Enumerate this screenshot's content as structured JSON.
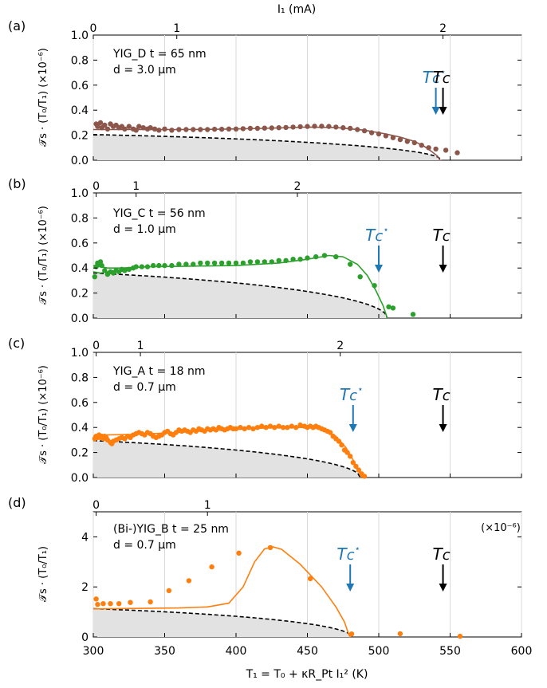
{
  "figure": {
    "shared_xlabel": "T₁ = T₀ + κR_Pt I₁² (K)",
    "shared_xticks": [
      300,
      350,
      400,
      450,
      500,
      550,
      600
    ]
  },
  "chart_data": [
    {
      "type": "scatter",
      "panel_label": "(a)",
      "sample_line1": "YIG_D t = 65 nm",
      "sample_line2": "d = 3.0 µm",
      "ylabel": "𝒯s · (T₀/T₁) (×10⁻⁶)",
      "top_axis_label": "I₁ (mA)",
      "xlim": [
        300,
        600
      ],
      "ylim": [
        0,
        1.0
      ],
      "yticks": [
        0.0,
        0.2,
        0.4,
        0.6,
        0.8,
        1.0
      ],
      "top_ticks": [
        {
          "label": "0",
          "x": 300
        },
        {
          "label": "1",
          "x": 358.5
        },
        {
          "label": "2",
          "x": 545
        }
      ],
      "grid": true,
      "color": "#8c564b",
      "tc_star": {
        "label": "Tc*",
        "x": 540
      },
      "tc": {
        "label": "Tc",
        "x": 545
      },
      "points": [
        [
          302,
          0.29
        ],
        [
          303,
          0.27
        ],
        [
          305,
          0.3
        ],
        [
          306,
          0.26
        ],
        [
          308,
          0.28
        ],
        [
          310,
          0.25
        ],
        [
          312,
          0.29
        ],
        [
          314,
          0.27
        ],
        [
          316,
          0.28
        ],
        [
          318,
          0.26
        ],
        [
          320,
          0.27
        ],
        [
          322,
          0.25
        ],
        [
          325,
          0.27
        ],
        [
          328,
          0.25
        ],
        [
          330,
          0.24
        ],
        [
          332,
          0.27
        ],
        [
          335,
          0.26
        ],
        [
          338,
          0.25
        ],
        [
          340,
          0.26
        ],
        [
          343,
          0.25
        ],
        [
          346,
          0.24
        ],
        [
          350,
          0.25
        ],
        [
          355,
          0.24
        ],
        [
          360,
          0.245
        ],
        [
          365,
          0.245
        ],
        [
          370,
          0.245
        ],
        [
          375,
          0.245
        ],
        [
          380,
          0.245
        ],
        [
          385,
          0.248
        ],
        [
          390,
          0.248
        ],
        [
          395,
          0.25
        ],
        [
          400,
          0.25
        ],
        [
          405,
          0.252
        ],
        [
          410,
          0.255
        ],
        [
          415,
          0.255
        ],
        [
          420,
          0.257
        ],
        [
          425,
          0.258
        ],
        [
          430,
          0.26
        ],
        [
          435,
          0.262
        ],
        [
          440,
          0.265
        ],
        [
          445,
          0.268
        ],
        [
          450,
          0.27
        ],
        [
          455,
          0.272
        ],
        [
          460,
          0.272
        ],
        [
          465,
          0.27
        ],
        [
          470,
          0.265
        ],
        [
          475,
          0.26
        ],
        [
          480,
          0.255
        ],
        [
          485,
          0.245
        ],
        [
          490,
          0.235
        ],
        [
          495,
          0.22
        ],
        [
          500,
          0.21
        ],
        [
          505,
          0.195
        ],
        [
          510,
          0.18
        ],
        [
          515,
          0.165
        ],
        [
          520,
          0.15
        ],
        [
          525,
          0.14
        ],
        [
          530,
          0.12
        ],
        [
          535,
          0.1
        ],
        [
          540,
          0.09
        ],
        [
          547,
          0.08
        ],
        [
          555,
          0.06
        ]
      ],
      "fit": [
        [
          300,
          0.245
        ],
        [
          330,
          0.245
        ],
        [
          360,
          0.245
        ],
        [
          390,
          0.248
        ],
        [
          420,
          0.255
        ],
        [
          450,
          0.265
        ],
        [
          470,
          0.262
        ],
        [
          490,
          0.24
        ],
        [
          505,
          0.21
        ],
        [
          515,
          0.185
        ],
        [
          525,
          0.15
        ],
        [
          532,
          0.11
        ],
        [
          537,
          0.07
        ],
        [
          541,
          0.035
        ],
        [
          543,
          0.0
        ]
      ],
      "mf_curve": {
        "amplitude": 0.205,
        "tc": 544
      }
    },
    {
      "type": "scatter",
      "panel_label": "(b)",
      "sample_line1": "YIG_C t = 56 nm",
      "sample_line2": "d = 1.0 µm",
      "ylabel": "𝒯s · (T₀/T₁) (×10⁻⁶)",
      "xlim": [
        300,
        600
      ],
      "ylim": [
        0,
        1.0
      ],
      "yticks": [
        0.0,
        0.2,
        0.4,
        0.6,
        0.8,
        1.0
      ],
      "top_ticks": [
        {
          "label": "0",
          "x": 302
        },
        {
          "label": "1",
          "x": 330
        },
        {
          "label": "2",
          "x": 443
        }
      ],
      "grid": true,
      "color": "#2ca02c",
      "tc_star": {
        "label": "Tc*",
        "x": 500
      },
      "tc": {
        "label": "Tc",
        "x": 545
      },
      "points": [
        [
          301,
          0.33
        ],
        [
          302,
          0.41
        ],
        [
          303,
          0.44
        ],
        [
          304,
          0.43
        ],
        [
          305,
          0.45
        ],
        [
          306,
          0.42
        ],
        [
          308,
          0.38
        ],
        [
          310,
          0.35
        ],
        [
          312,
          0.37
        ],
        [
          314,
          0.36
        ],
        [
          316,
          0.38
        ],
        [
          318,
          0.37
        ],
        [
          320,
          0.39
        ],
        [
          322,
          0.38
        ],
        [
          325,
          0.39
        ],
        [
          328,
          0.4
        ],
        [
          330,
          0.41
        ],
        [
          334,
          0.41
        ],
        [
          338,
          0.41
        ],
        [
          342,
          0.42
        ],
        [
          346,
          0.42
        ],
        [
          350,
          0.42
        ],
        [
          355,
          0.42
        ],
        [
          360,
          0.43
        ],
        [
          365,
          0.43
        ],
        [
          370,
          0.43
        ],
        [
          375,
          0.44
        ],
        [
          380,
          0.44
        ],
        [
          385,
          0.44
        ],
        [
          390,
          0.44
        ],
        [
          395,
          0.44
        ],
        [
          400,
          0.44
        ],
        [
          405,
          0.44
        ],
        [
          410,
          0.45
        ],
        [
          415,
          0.45
        ],
        [
          420,
          0.45
        ],
        [
          425,
          0.45
        ],
        [
          430,
          0.46
        ],
        [
          435,
          0.46
        ],
        [
          440,
          0.47
        ],
        [
          445,
          0.47
        ],
        [
          450,
          0.48
        ],
        [
          456,
          0.49
        ],
        [
          462,
          0.5
        ],
        [
          470,
          0.49
        ],
        [
          480,
          0.43
        ],
        [
          487,
          0.33
        ],
        [
          497,
          0.26
        ],
        [
          507,
          0.09
        ],
        [
          510,
          0.08
        ],
        [
          524,
          0.03
        ]
      ],
      "fit": [
        [
          300,
          0.42
        ],
        [
          310,
          0.4
        ],
        [
          320,
          0.4
        ],
        [
          340,
          0.41
        ],
        [
          370,
          0.415
        ],
        [
          400,
          0.42
        ],
        [
          430,
          0.44
        ],
        [
          450,
          0.47
        ],
        [
          465,
          0.5
        ],
        [
          475,
          0.49
        ],
        [
          485,
          0.43
        ],
        [
          492,
          0.34
        ],
        [
          498,
          0.22
        ],
        [
          503,
          0.1
        ],
        [
          506,
          0.0
        ]
      ],
      "fit2": [
        [
          300,
          0.37
        ],
        [
          305,
          0.36
        ],
        [
          310,
          0.37
        ],
        [
          320,
          0.39
        ],
        [
          330,
          0.4
        ]
      ],
      "mf_curve": {
        "amplitude": 0.36,
        "tc": 506
      }
    },
    {
      "type": "scatter",
      "panel_label": "(c)",
      "sample_line1": "YIG_A t = 18 nm",
      "sample_line2": "d = 0.7 µm",
      "ylabel": "𝒯s · (T₀/T₁) (×10⁻⁶)",
      "xlim": [
        300,
        600
      ],
      "ylim": [
        0,
        1.0
      ],
      "yticks": [
        0.0,
        0.2,
        0.4,
        0.6,
        0.8,
        1.0
      ],
      "top_ticks": [
        {
          "label": "0",
          "x": 302
        },
        {
          "label": "1",
          "x": 333
        },
        {
          "label": "2",
          "x": 473
        }
      ],
      "grid": true,
      "color": "#ff7f0e",
      "tc_star": {
        "label": "Tc*",
        "x": 482
      },
      "tc": {
        "label": "Tc",
        "x": 545
      },
      "points": [
        [
          301,
          0.31
        ],
        [
          302,
          0.33
        ],
        [
          303,
          0.32
        ],
        [
          304,
          0.34
        ],
        [
          305,
          0.32
        ],
        [
          306,
          0.33
        ],
        [
          307,
          0.31
        ],
        [
          308,
          0.33
        ],
        [
          309,
          0.32
        ],
        [
          310,
          0.3
        ],
        [
          312,
          0.28
        ],
        [
          313,
          0.27
        ],
        [
          314,
          0.29
        ],
        [
          316,
          0.3
        ],
        [
          318,
          0.31
        ],
        [
          320,
          0.32
        ],
        [
          322,
          0.31
        ],
        [
          324,
          0.33
        ],
        [
          326,
          0.32
        ],
        [
          328,
          0.34
        ],
        [
          330,
          0.35
        ],
        [
          332,
          0.36
        ],
        [
          334,
          0.35
        ],
        [
          336,
          0.34
        ],
        [
          338,
          0.36
        ],
        [
          340,
          0.35
        ],
        [
          342,
          0.33
        ],
        [
          344,
          0.32
        ],
        [
          346,
          0.33
        ],
        [
          348,
          0.34
        ],
        [
          350,
          0.36
        ],
        [
          352,
          0.37
        ],
        [
          354,
          0.35
        ],
        [
          356,
          0.34
        ],
        [
          358,
          0.36
        ],
        [
          360,
          0.38
        ],
        [
          362,
          0.37
        ],
        [
          364,
          0.38
        ],
        [
          366,
          0.37
        ],
        [
          368,
          0.36
        ],
        [
          370,
          0.38
        ],
        [
          372,
          0.37
        ],
        [
          374,
          0.39
        ],
        [
          376,
          0.38
        ],
        [
          378,
          0.37
        ],
        [
          380,
          0.39
        ],
        [
          382,
          0.38
        ],
        [
          384,
          0.39
        ],
        [
          386,
          0.38
        ],
        [
          388,
          0.4
        ],
        [
          390,
          0.39
        ],
        [
          392,
          0.38
        ],
        [
          394,
          0.39
        ],
        [
          396,
          0.4
        ],
        [
          398,
          0.39
        ],
        [
          400,
          0.39
        ],
        [
          403,
          0.4
        ],
        [
          406,
          0.39
        ],
        [
          409,
          0.4
        ],
        [
          412,
          0.39
        ],
        [
          415,
          0.4
        ],
        [
          418,
          0.41
        ],
        [
          421,
          0.4
        ],
        [
          424,
          0.41
        ],
        [
          427,
          0.4
        ],
        [
          430,
          0.41
        ],
        [
          433,
          0.4
        ],
        [
          436,
          0.4
        ],
        [
          439,
          0.41
        ],
        [
          442,
          0.4
        ],
        [
          445,
          0.42
        ],
        [
          448,
          0.41
        ],
        [
          450,
          0.4
        ],
        [
          452,
          0.41
        ],
        [
          454,
          0.4
        ],
        [
          456,
          0.41
        ],
        [
          458,
          0.4
        ],
        [
          460,
          0.39
        ],
        [
          462,
          0.38
        ],
        [
          464,
          0.37
        ],
        [
          466,
          0.36
        ],
        [
          468,
          0.33
        ],
        [
          470,
          0.31
        ],
        [
          472,
          0.29
        ],
        [
          474,
          0.26
        ],
        [
          476,
          0.22
        ],
        [
          478,
          0.2
        ],
        [
          480,
          0.17
        ],
        [
          482,
          0.12
        ],
        [
          484,
          0.09
        ],
        [
          486,
          0.06
        ],
        [
          488,
          0.03
        ],
        [
          490,
          0.01
        ]
      ],
      "fit": [
        [
          300,
          0.33
        ],
        [
          310,
          0.34
        ],
        [
          330,
          0.345
        ],
        [
          360,
          0.36
        ],
        [
          390,
          0.38
        ],
        [
          420,
          0.395
        ],
        [
          440,
          0.4
        ],
        [
          452,
          0.4
        ],
        [
          462,
          0.38
        ],
        [
          470,
          0.33
        ],
        [
          477,
          0.24
        ],
        [
          482,
          0.14
        ],
        [
          486,
          0.05
        ],
        [
          488,
          0.0
        ]
      ],
      "mf_curve": {
        "amplitude": 0.295,
        "tc": 487
      }
    },
    {
      "type": "scatter",
      "panel_label": "(d)",
      "sample_line1": "(Bi-)YIG_B t = 25 nm",
      "sample_line2": "d = 0.7 µm",
      "ylabel": "𝒯s · (T₀/T₁)",
      "scale_label": "(×10⁻⁶)",
      "xlim": [
        300,
        600
      ],
      "ylim": [
        0,
        5
      ],
      "yticks": [
        0,
        2,
        4
      ],
      "top_ticks": [
        {
          "label": "0",
          "x": 302
        },
        {
          "label": "1",
          "x": 380
        }
      ],
      "grid": true,
      "color": "#ff7f0e",
      "tc_star": {
        "label": "Tc*",
        "x": 480
      },
      "tc": {
        "label": "Tc",
        "x": 545
      },
      "points": [
        [
          302,
          1.52
        ],
        [
          303,
          1.3
        ],
        [
          307,
          1.33
        ],
        [
          312,
          1.33
        ],
        [
          318,
          1.33
        ],
        [
          326,
          1.38
        ],
        [
          340,
          1.4
        ],
        [
          353,
          1.85
        ],
        [
          367,
          2.25
        ],
        [
          383,
          2.8
        ],
        [
          402,
          3.35
        ],
        [
          424,
          3.57
        ],
        [
          452,
          2.33
        ],
        [
          481,
          0.12
        ],
        [
          515,
          0.13
        ],
        [
          557,
          0.03
        ]
      ],
      "fit": [
        [
          300,
          1.12
        ],
        [
          330,
          1.14
        ],
        [
          360,
          1.16
        ],
        [
          380,
          1.2
        ],
        [
          395,
          1.35
        ],
        [
          405,
          2.0
        ],
        [
          413,
          3.0
        ],
        [
          420,
          3.52
        ],
        [
          426,
          3.6
        ],
        [
          432,
          3.5
        ],
        [
          445,
          2.9
        ],
        [
          460,
          2.0
        ],
        [
          470,
          1.2
        ],
        [
          476,
          0.6
        ],
        [
          479,
          0.1
        ],
        [
          480,
          0.0
        ]
      ],
      "mf_curve": {
        "amplitude": 1.13,
        "tc": 481
      }
    }
  ]
}
